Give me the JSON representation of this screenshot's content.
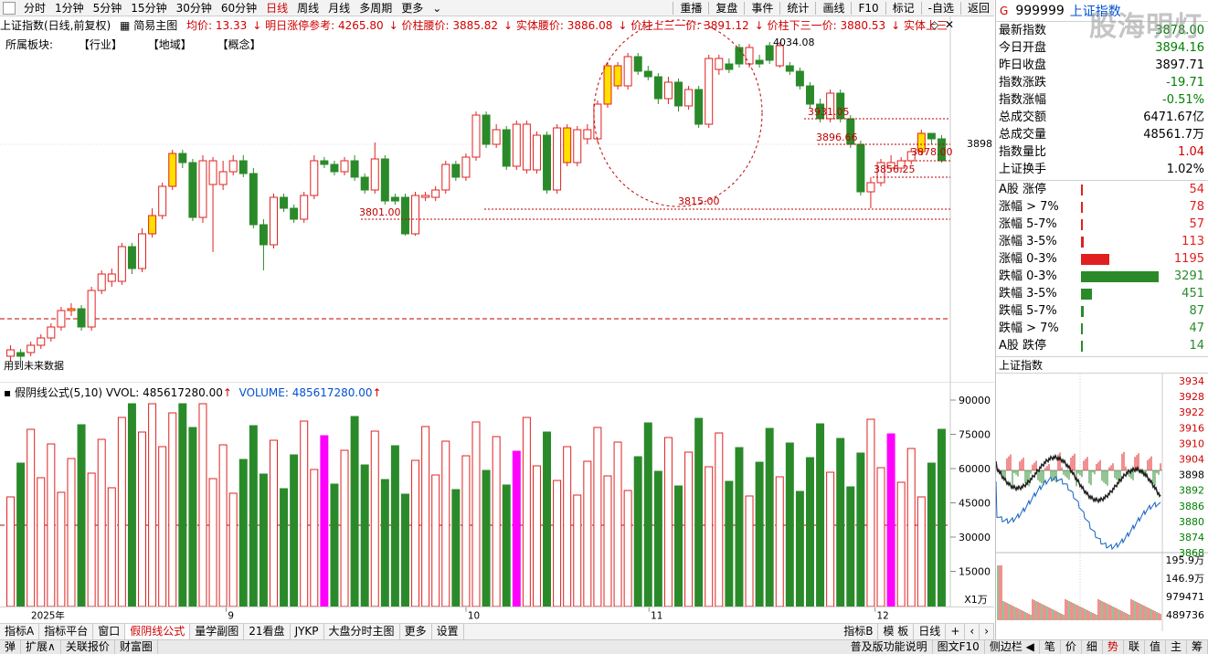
{
  "period_bar": {
    "items": [
      "分时",
      "1分钟",
      "5分钟",
      "15分钟",
      "30分钟",
      "60分钟",
      "日线",
      "周线",
      "月线",
      "多周期",
      "更多"
    ],
    "active": "日线",
    "right_items": [
      "重播",
      "复盘",
      "事件",
      "统计",
      "画线",
      "F10",
      "标记",
      "-自选",
      "返回"
    ]
  },
  "info_line": {
    "title": "上证指数(日线,前复权)",
    "chart_mode": "简易主图",
    "avg_price": "均价: 13.33",
    "limit_ref": "明日涨停参考: 4265.80",
    "waist1": "价柱腰价: 3885.82",
    "waist2": "实体腰价: 3886.08",
    "upper3": "价柱上三一价: 3891.12",
    "lower3": "价柱下三一价: 3880.53",
    "solid_upper3": "实体上三一价:"
  },
  "sector_line": {
    "label": "所属板块:",
    "industry": "【行业】",
    "region": "【地域】",
    "concept": "【概念】"
  },
  "main_chart": {
    "price_label_right": "3898",
    "annotations": [
      "4034.08",
      "3931.05",
      "3896.66",
      "3878.00",
      "3856.25",
      "3815.00",
      "3801.00"
    ],
    "bottom_left_text": "用到未来数据",
    "colors": {
      "up": "#e02020",
      "down": "#2a8a2a",
      "yellow": "#ffe000",
      "magenta": "#ff00ff"
    }
  },
  "volume_header": {
    "formula": "假阴线公式(5,10)",
    "vvol": "VVOL: 485617280.00",
    "volume": "VOLUME: 485617280.00"
  },
  "volume_axis": [
    "90000",
    "75000",
    "60000",
    "45000",
    "30000",
    "15000"
  ],
  "volume_unit": "X1万",
  "x_axis": {
    "year": "2025年",
    "months": [
      "9",
      "10",
      "11",
      "12"
    ]
  },
  "bottom_tabs": [
    "指标A",
    "指标平台",
    "窗口",
    "假阴线公式",
    "量学副图",
    "21看盘",
    "JYKP",
    "大盘分时主图",
    "更多",
    "设置"
  ],
  "bottom_tabs_active": "假阴线公式",
  "bottom_tabs_right": [
    "指标B",
    "模 板",
    "日线"
  ],
  "status_bar": {
    "left": [
      "弹",
      "扩展∧",
      "关联报价",
      "财富圈"
    ],
    "right": [
      "普及版功能说明",
      "图文F10",
      "侧边栏 ◀",
      "笔",
      "价",
      "细",
      "势",
      "联",
      "值",
      "主",
      "筹"
    ]
  },
  "right_panel": {
    "marker": "G",
    "code": "999999",
    "name": "上证指数",
    "watermark": "股海明灯",
    "stats": [
      {
        "label": "最新指数",
        "value": "3878.00",
        "color": "green"
      },
      {
        "label": "今日开盘",
        "value": "3894.16",
        "color": "green"
      },
      {
        "label": "昨日收盘",
        "value": "3897.71",
        "color": "black"
      },
      {
        "label": "指数涨跌",
        "value": "-19.71",
        "color": "green"
      },
      {
        "label": "指数涨幅",
        "value": "-0.51%",
        "color": "green"
      },
      {
        "label": "总成交额",
        "value": "6471.67亿",
        "color": "black"
      },
      {
        "label": "总成交量",
        "value": "48561.7万",
        "color": "black"
      },
      {
        "label": "指数量比",
        "value": "1.04",
        "color": "red"
      },
      {
        "label": "上证换手",
        "value": "1.02%",
        "color": "black"
      }
    ],
    "distribution": [
      {
        "label": "A股 涨停",
        "value": "54",
        "fraction": 0.01,
        "color": "#e02020"
      },
      {
        "label": "涨幅 > 7%",
        "value": "78",
        "fraction": 0.01,
        "color": "#e02020"
      },
      {
        "label": "涨幅 5-7%",
        "value": "57",
        "fraction": 0.01,
        "color": "#e02020"
      },
      {
        "label": "涨幅 3-5%",
        "value": "113",
        "fraction": 0.03,
        "color": "#e02020"
      },
      {
        "label": "涨幅 0-3%",
        "value": "1195",
        "fraction": 0.36,
        "color": "#e02020"
      },
      {
        "label": "跌幅 0-3%",
        "value": "3291",
        "fraction": 1.0,
        "color": "#2a8a2a"
      },
      {
        "label": "跌幅 3-5%",
        "value": "451",
        "fraction": 0.14,
        "color": "#2a8a2a"
      },
      {
        "label": "跌幅 5-7%",
        "value": "87",
        "fraction": 0.03,
        "color": "#2a8a2a"
      },
      {
        "label": "跌幅 > 7%",
        "value": "47",
        "fraction": 0.01,
        "color": "#2a8a2a"
      },
      {
        "label": "A股 跌停",
        "value": "14",
        "fraction": 0.01,
        "color": "#2a8a2a"
      }
    ],
    "mini_title": "上证指数",
    "mini_price_ticks": [
      "3934",
      "3928",
      "3922",
      "3916",
      "3910",
      "3904",
      "3898",
      "3892",
      "3886",
      "3880",
      "3874",
      "3868"
    ],
    "mini_vol_ticks": [
      "195.9万",
      "146.9万",
      "979471",
      "489736"
    ]
  }
}
